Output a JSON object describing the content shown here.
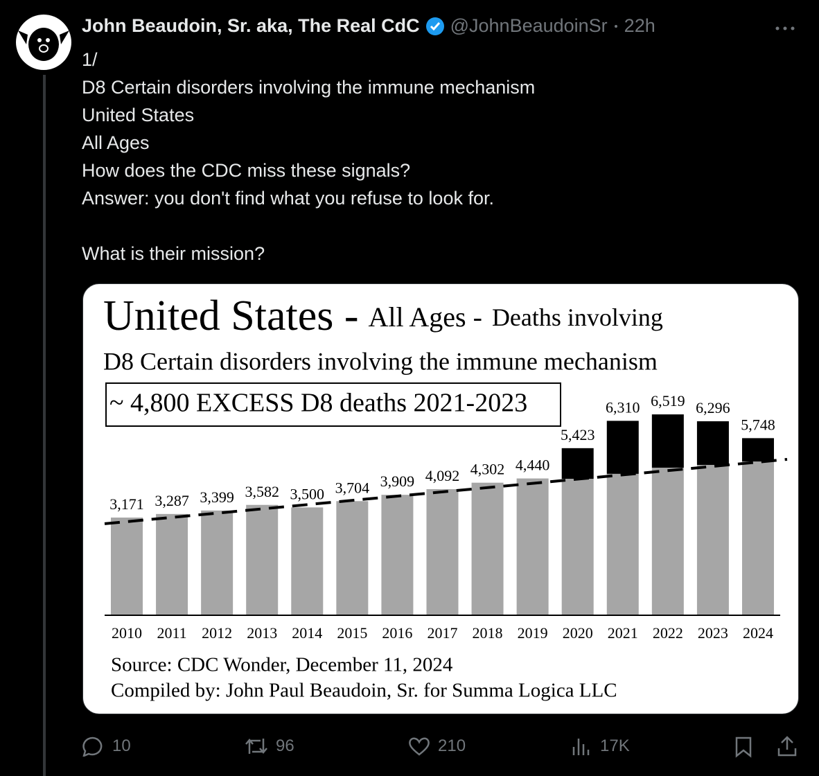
{
  "tweet": {
    "name": "John Beaudoin, Sr. aka, The Real CdC",
    "handle": "@JohnBeaudoinSr",
    "time": "22h",
    "paragraphs": [
      [
        "1/",
        "D8 Certain disorders involving the immune mechanism",
        "United States",
        "All Ages",
        "How does the CDC miss these signals?",
        "Answer: you don't find what you refuse to look for."
      ],
      [
        "What is their mission?"
      ]
    ],
    "actions": {
      "replies": "10",
      "reposts": "96",
      "likes": "210",
      "views": "17K"
    }
  },
  "chart_data": {
    "type": "bar",
    "title_parts": [
      "United States -",
      "All Ages -",
      "Deaths involving"
    ],
    "subtitle": "D8 Certain disorders involving the immune mechanism",
    "annotation": "~ 4,800 EXCESS D8 deaths 2021-2023",
    "categories": [
      "2010",
      "2011",
      "2012",
      "2013",
      "2014",
      "2015",
      "2016",
      "2017",
      "2018",
      "2019",
      "2020",
      "2021",
      "2022",
      "2023",
      "2024"
    ],
    "values": [
      3171,
      3287,
      3399,
      3582,
      3500,
      3704,
      3909,
      4092,
      4302,
      4440,
      5423,
      6310,
      6519,
      6296,
      5748
    ],
    "value_labels": [
      "3,171",
      "3,287",
      "3,399",
      "3,582",
      "3,500",
      "3,704",
      "3,909",
      "4,092",
      "4,302",
      "4,440",
      "5,423",
      "6,310",
      "6,519",
      "6,296",
      "5,748"
    ],
    "expected": [
      null,
      null,
      null,
      null,
      null,
      null,
      null,
      null,
      null,
      null,
      4430,
      4590,
      4790,
      4880,
      4990
    ],
    "trend": {
      "start": 2970,
      "end": 5060
    },
    "color": "#a6a6a6",
    "excess_color": "#000000",
    "source": "Source:  CDC Wonder, December 11, 2024",
    "compiled": "Compiled by:  John Paul Beaudoin, Sr. for Summa Logica LLC"
  }
}
